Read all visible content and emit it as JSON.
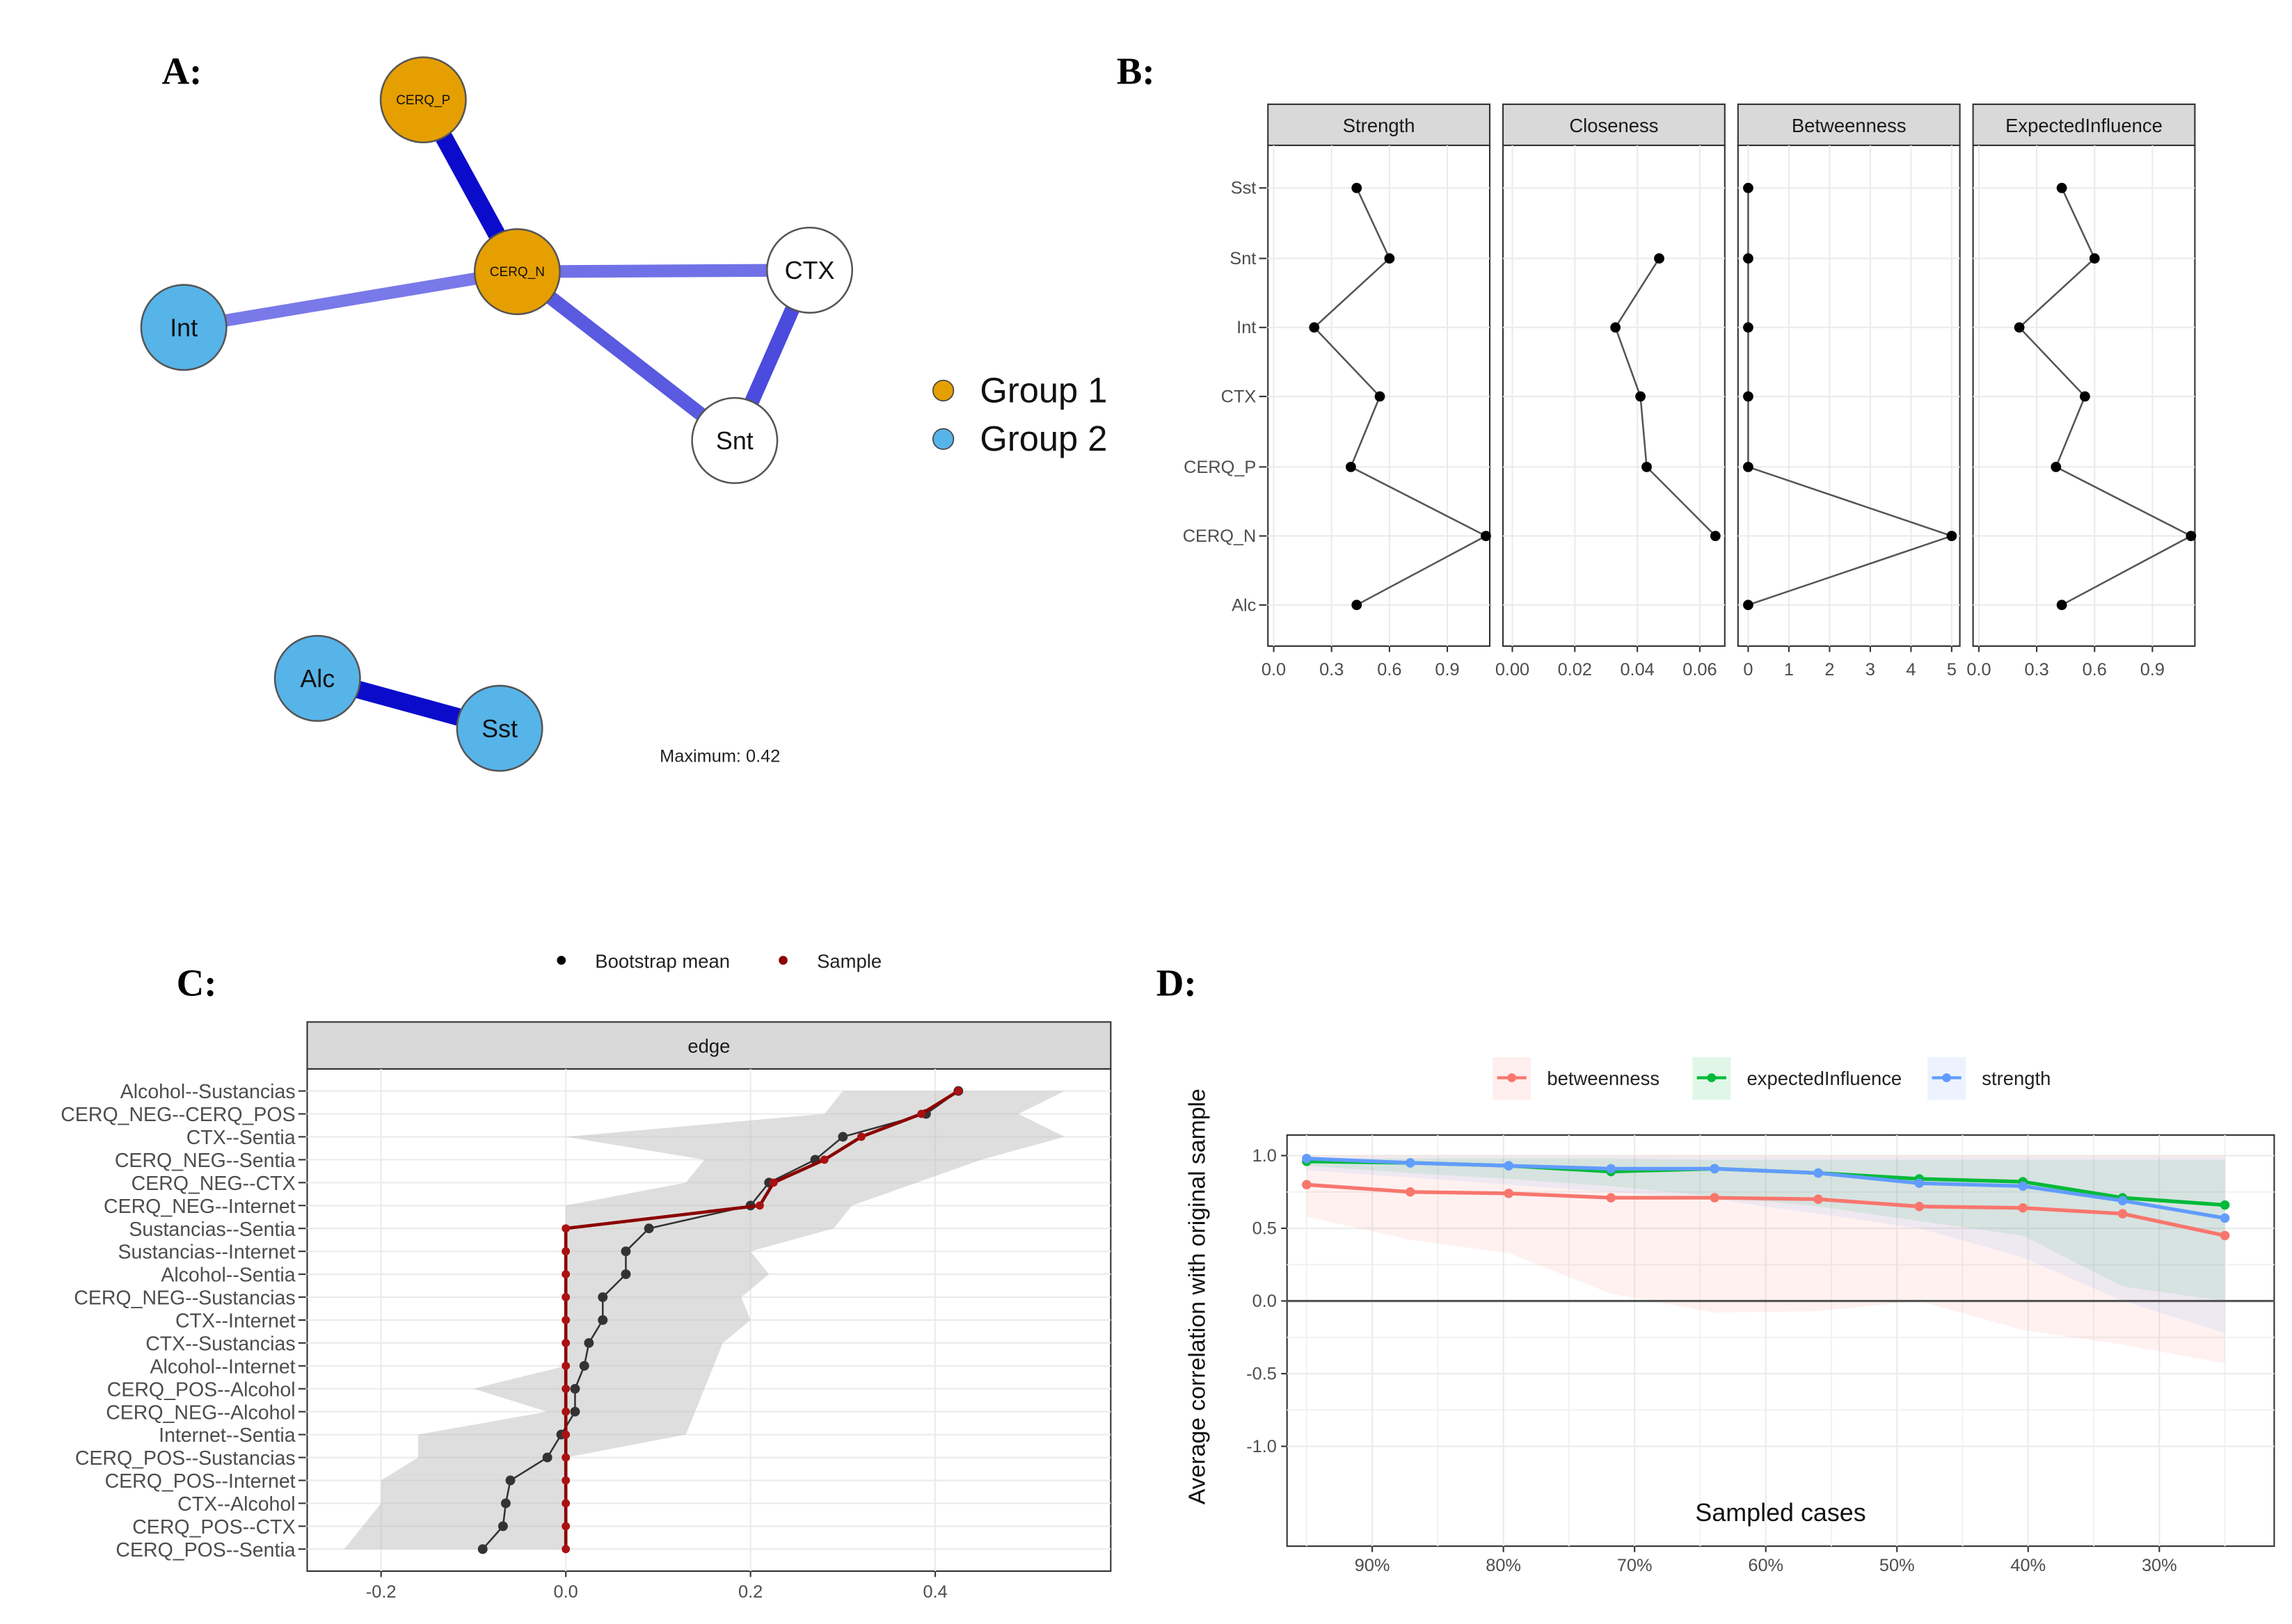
{
  "panel_labels": [
    "A:",
    "B:",
    "C:",
    "D:"
  ],
  "chart_data": [
    {
      "type": "network",
      "panel": "A",
      "nodes": [
        {
          "id": "CERQ_P",
          "group": 1
        },
        {
          "id": "CERQ_N",
          "group": 1
        },
        {
          "id": "CTX",
          "group": 0
        },
        {
          "id": "Int",
          "group": 2
        },
        {
          "id": "Snt",
          "group": 0
        },
        {
          "id": "Alc",
          "group": 2
        },
        {
          "id": "Sst",
          "group": 2
        }
      ],
      "edges": [
        {
          "from": "CERQ_P",
          "to": "CERQ_N",
          "weight": 0.42
        },
        {
          "from": "CERQ_N",
          "to": "Int",
          "weight": 0.2
        },
        {
          "from": "CERQ_N",
          "to": "CTX",
          "weight": 0.22
        },
        {
          "from": "CERQ_N",
          "to": "Snt",
          "weight": 0.27
        },
        {
          "from": "CTX",
          "to": "Snt",
          "weight": 0.3
        },
        {
          "from": "Alc",
          "to": "Sst",
          "weight": 0.42
        }
      ],
      "legend": [
        {
          "label": "Group 1",
          "color": "#E69F00"
        },
        {
          "label": "Group 2",
          "color": "#56B4E9"
        }
      ],
      "maximum_label": "Maximum: 0.42"
    },
    {
      "type": "line",
      "panel": "B",
      "categories": [
        "Sst",
        "Snt",
        "Int",
        "CTX",
        "CERQ_P",
        "CERQ_N",
        "Alc"
      ],
      "facets": [
        {
          "name": "Strength",
          "ticks": [
            0.0,
            0.3,
            0.6,
            0.9
          ],
          "tick_labels": [
            "0.0",
            "0.3",
            "0.6",
            "0.9"
          ],
          "xlim": [
            -0.03,
            1.12
          ],
          "values": [
            0.43,
            0.6,
            0.21,
            0.55,
            0.4,
            1.1,
            0.43
          ]
        },
        {
          "name": "Closeness",
          "ticks": [
            0,
            0.02,
            0.04,
            0.06
          ],
          "tick_labels": [
            "0.00",
            "0.02",
            "0.04",
            "0.06"
          ],
          "xlim": [
            -0.003,
            0.068
          ],
          "values": [
            null,
            0.047,
            0.033,
            0.041,
            0.043,
            0.065,
            null
          ]
        },
        {
          "name": "Betweenness",
          "ticks": [
            0,
            1,
            2,
            3,
            4,
            5
          ],
          "tick_labels": [
            "0",
            "1",
            "2",
            "3",
            "4",
            "5"
          ],
          "xlim": [
            -0.25,
            5.2
          ],
          "values": [
            0,
            0,
            0,
            0,
            0,
            5,
            0
          ]
        },
        {
          "name": "ExpectedInfluence",
          "ticks": [
            0.0,
            0.3,
            0.6,
            0.9
          ],
          "tick_labels": [
            "0.0",
            "0.3",
            "0.6",
            "0.9"
          ],
          "xlim": [
            -0.03,
            1.12
          ],
          "values": [
            0.43,
            0.6,
            0.21,
            0.55,
            0.4,
            1.1,
            0.43
          ]
        }
      ]
    },
    {
      "type": "line",
      "panel": "C",
      "strip": "edge",
      "legend": [
        {
          "label": "Bootstrap mean",
          "color": "#000000"
        },
        {
          "label": "Sample",
          "color": "#8B0000"
        }
      ],
      "categories": [
        "Alcohol--Sustancias",
        "CERQ_NEG--CERQ_POS",
        "CTX--Sentia",
        "CERQ_NEG--Sentia",
        "CERQ_NEG--CTX",
        "CERQ_NEG--Internet",
        "Sustancias--Sentia",
        "Sustancias--Internet",
        "Alcohol--Sentia",
        "CERQ_NEG--Sustancias",
        "CTX--Internet",
        "CTX--Sustancias",
        "Alcohol--Internet",
        "CERQ_POS--Alcohol",
        "CERQ_NEG--Alcohol",
        "Internet--Sentia",
        "CERQ_POS--Sustancias",
        "CERQ_POS--Internet",
        "CTX--Alcohol",
        "CERQ_POS--CTX",
        "CERQ_POS--Sentia"
      ],
      "bootstrap_mean": [
        0.425,
        0.39,
        0.3,
        0.27,
        0.22,
        0.2,
        0.09,
        0.065,
        0.065,
        0.04,
        0.04,
        0.025,
        0.02,
        0.01,
        0.01,
        -0.005,
        -0.02,
        -0.06,
        -0.065,
        -0.068,
        -0.09
      ],
      "sample": [
        0.425,
        0.385,
        0.32,
        0.28,
        0.225,
        0.21,
        0,
        0,
        0,
        0,
        0,
        0,
        0,
        0,
        0,
        0,
        0,
        0,
        0,
        0,
        0
      ],
      "ci_lower": [
        0.3,
        0.28,
        0.0,
        0.15,
        0.13,
        0.0,
        0,
        0,
        0,
        0,
        0,
        0,
        0,
        -0.1,
        -0.02,
        -0.16,
        -0.16,
        -0.2,
        -0.2,
        -0.22,
        -0.24
      ],
      "ci_upper": [
        0.54,
        0.49,
        0.54,
        0.45,
        0.38,
        0.31,
        0.29,
        0.2,
        0.22,
        0.19,
        0.2,
        0.17,
        0.16,
        0.15,
        0.14,
        0.13,
        0.0,
        0.0,
        0.0,
        0.0,
        0.0
      ],
      "ticks": [
        -0.2,
        0.0,
        0.2,
        0.4
      ],
      "tick_labels": [
        "-0.2",
        "0.0",
        "0.2",
        "0.4"
      ],
      "xlim": [
        -0.28,
        0.59
      ]
    },
    {
      "type": "line",
      "panel": "D",
      "xlabel": "Sampled cases",
      "ylabel": "Average correlation with original sample",
      "x": [
        95,
        87.1,
        79.6,
        71.8,
        63.9,
        56.0,
        48.3,
        40.4,
        32.8,
        25
      ],
      "series": [
        {
          "name": "betweenness",
          "color": "#F8766D",
          "values": [
            0.8,
            0.75,
            0.74,
            0.71,
            0.71,
            0.7,
            0.65,
            0.64,
            0.6,
            0.45
          ],
          "lower": [
            0.58,
            0.42,
            0.33,
            0.05,
            -0.08,
            -0.07,
            0.0,
            -0.2,
            -0.3,
            -0.43
          ],
          "upper": [
            1,
            1,
            1,
            1,
            1,
            1,
            1,
            1,
            1,
            1
          ]
        },
        {
          "name": "expectedInfluence",
          "color": "#00BA38",
          "values": [
            0.96,
            0.95,
            0.93,
            0.89,
            0.91,
            0.88,
            0.84,
            0.82,
            0.71,
            0.66
          ],
          "lower": [
            0.93,
            0.88,
            0.84,
            0.79,
            0.72,
            0.65,
            0.55,
            0.45,
            0.1,
            0.0
          ],
          "upper": [
            0.98,
            0.98,
            0.98,
            0.98,
            0.97,
            0.97,
            0.97,
            0.97,
            0.97,
            0.97
          ]
        },
        {
          "name": "strength",
          "color": "#619CFF",
          "values": [
            0.98,
            0.95,
            0.93,
            0.91,
            0.91,
            0.88,
            0.81,
            0.79,
            0.69,
            0.57
          ],
          "lower": [
            0.9,
            0.85,
            0.8,
            0.75,
            0.7,
            0.6,
            0.5,
            0.3,
            0.0,
            -0.22
          ],
          "upper": [
            0.99,
            0.99,
            0.99,
            0.99,
            0.99,
            0.99,
            0.99,
            0.99,
            0.99,
            0.99
          ]
        }
      ],
      "yticks": [
        1.0,
        0.5,
        0.0,
        -0.5,
        -1.0
      ],
      "ytick_labels": [
        "1.0",
        "0.5",
        "0.0",
        "-0.5",
        "-1.0"
      ],
      "xticks": [
        90,
        80,
        70,
        60,
        50,
        40,
        30
      ],
      "xtick_labels": [
        "90%",
        "80%",
        "70%",
        "60%",
        "50%",
        "40%",
        "30%"
      ],
      "xlim": [
        98,
        22
      ],
      "ylim": [
        -1.1,
        1.1
      ]
    }
  ]
}
